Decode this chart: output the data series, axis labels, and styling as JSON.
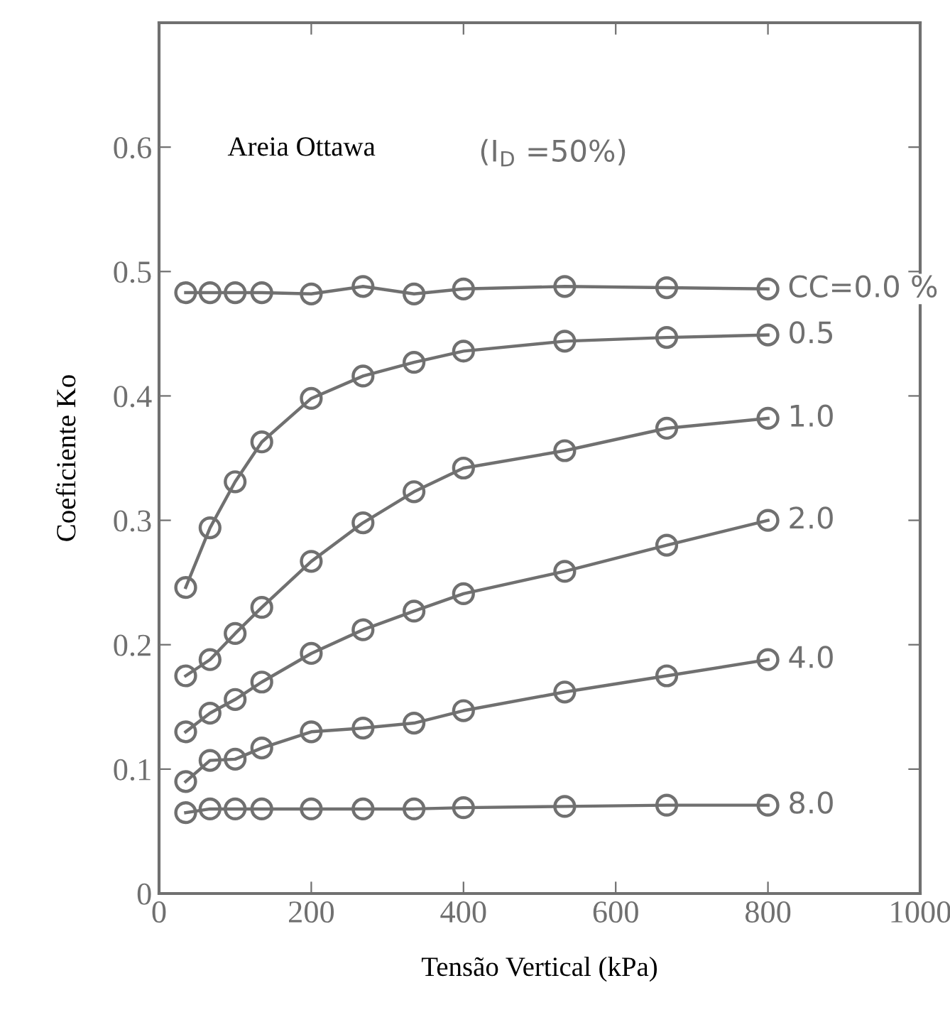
{
  "chart_data": {
    "type": "line",
    "xlabel": "Tensão Vertical (kPa)",
    "ylabel": "Coeficiente Ko",
    "x": [
      35,
      67,
      100,
      135,
      200,
      268,
      335,
      400,
      533,
      667,
      800
    ],
    "series": [
      {
        "name": "CC=0.0 %",
        "color": "#707070",
        "values": [
          0.483,
          0.483,
          0.483,
          0.483,
          0.482,
          0.488,
          0.482,
          0.486,
          0.488,
          0.487,
          0.486
        ]
      },
      {
        "name": "0.5",
        "color": "#707070",
        "values": [
          0.246,
          0.294,
          0.331,
          0.363,
          0.398,
          0.416,
          0.427,
          0.436,
          0.444,
          0.447,
          0.449
        ]
      },
      {
        "name": "1.0",
        "color": "#707070",
        "values": [
          0.175,
          0.188,
          0.209,
          0.23,
          0.267,
          0.298,
          0.323,
          0.342,
          0.356,
          0.374,
          0.382
        ]
      },
      {
        "name": "2.0",
        "color": "#707070",
        "values": [
          0.13,
          0.145,
          0.156,
          0.17,
          0.193,
          0.212,
          0.227,
          0.241,
          0.259,
          0.28,
          0.3
        ]
      },
      {
        "name": "4.0",
        "color": "#707070",
        "values": [
          0.09,
          0.107,
          0.108,
          0.117,
          0.13,
          0.133,
          0.137,
          0.147,
          0.162,
          0.175,
          0.188
        ]
      },
      {
        "name": "8.0",
        "color": "#707070",
        "values": [
          0.065,
          0.068,
          0.068,
          0.068,
          0.068,
          0.068,
          0.068,
          0.069,
          0.07,
          0.071,
          0.071
        ]
      }
    ],
    "annotations": [
      "Areia Ottawa",
      "(I$_{D}$ =50%)"
    ],
    "xlim": [
      0,
      1000
    ],
    "xticks": [
      0,
      200,
      400,
      600,
      800,
      1000
    ],
    "ylim": [
      0,
      0.7
    ],
    "yticks": [
      0,
      0.1,
      0.2,
      0.3,
      0.4,
      0.5,
      0.6
    ],
    "grid": false,
    "legend": "right",
    "marker": "circle",
    "line_style": "solid"
  }
}
